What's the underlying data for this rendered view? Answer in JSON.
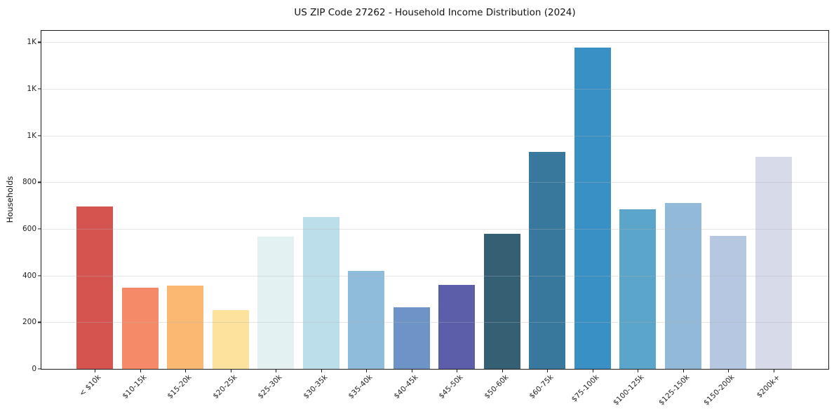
{
  "chart_data": {
    "type": "bar",
    "title": "US ZIP Code 27262 - Household Income Distribution (2024)",
    "xlabel": "",
    "ylabel": "Households",
    "categories": [
      "< $10k",
      "$10-15k",
      "$15-20k",
      "$20-25k",
      "$25-30k",
      "$30-35k",
      "$35-40k",
      "$40-45k",
      "$45-50k",
      "$50-60k",
      "$60-75k",
      "$75-100k",
      "$100-125k",
      "$125-150k",
      "$150-200k",
      "$200k+"
    ],
    "values": [
      695,
      348,
      356,
      253,
      568,
      650,
      419,
      264,
      361,
      578,
      930,
      1378,
      684,
      710,
      569,
      909
    ],
    "bar_colors": [
      "#d6544f",
      "#f48a68",
      "#fab873",
      "#fce29c",
      "#e4f1f3",
      "#bcdeea",
      "#90bcdb",
      "#6d93c7",
      "#5c5ea9",
      "#355f73",
      "#38789c",
      "#3990c5",
      "#5ba4ca",
      "#93b9d9",
      "#b5c7e1",
      "#d7dae8"
    ],
    "ylim": [
      0,
      1449
    ],
    "yticks": {
      "values": [
        0,
        200,
        400,
        600,
        800,
        1000,
        1200,
        1400
      ],
      "labels": [
        "0",
        "200",
        "400",
        "600",
        "800",
        "1K",
        "1K",
        "1K"
      ]
    },
    "grid": "horizontal, drawn over bars",
    "legend": "none",
    "axis_color": "#1a1a1a",
    "grid_color": "rgba(180,180,180,0.35)",
    "tick_label_color": "#222222",
    "background_color": "#ffffff"
  }
}
